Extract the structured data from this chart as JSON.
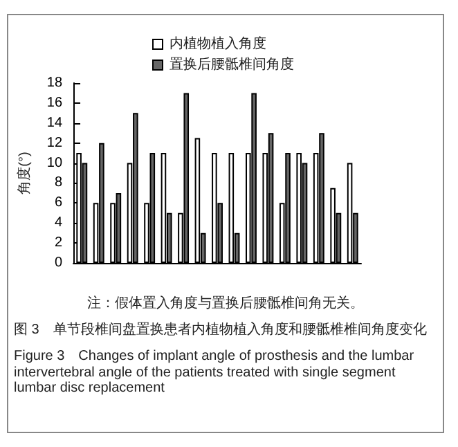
{
  "chart_data": {
    "type": "bar",
    "ylabel": "角度(°)",
    "categories": [
      null,
      null,
      null,
      null,
      null,
      null,
      null,
      null,
      null,
      null,
      null,
      null,
      null,
      null,
      null,
      null,
      null
    ],
    "series": [
      {
        "name": "内植物植入角度",
        "color": "#ffffff",
        "values": [
          11,
          6,
          6,
          10,
          6,
          11,
          5,
          12.5,
          11,
          11,
          11,
          11,
          6,
          11,
          11,
          7.5,
          10
        ]
      },
      {
        "name": "置换后腰骶椎间角度",
        "color": "#666666",
        "values": [
          10,
          12,
          7,
          15,
          11,
          5,
          17,
          3,
          6,
          3,
          17,
          13,
          11,
          10,
          13,
          5,
          5
        ]
      }
    ],
    "ylim": [
      0,
      18
    ],
    "yticks": [
      0,
      2,
      4,
      6,
      8,
      10,
      12,
      14,
      16,
      18
    ],
    "grid": false,
    "legend": "top",
    "annotations": [
      "注：假体置入角度与置换后腰骶椎间角无关。",
      "图 3　单节段椎间盘置换患者内植物植入角度和腰骶椎椎间角度变化",
      "Figure 3　Changes of implant angle of prosthesis and the lumbar intervertebral angle of the patients treated with single segment lumbar disc replacement"
    ]
  }
}
